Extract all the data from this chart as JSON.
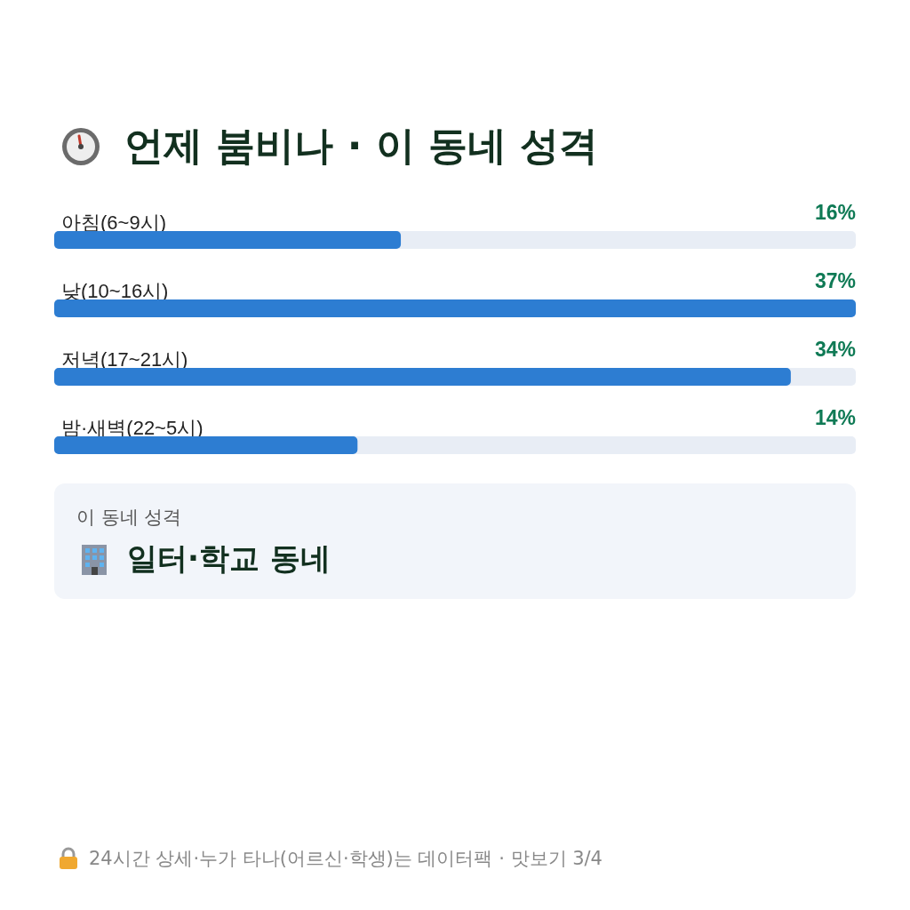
{
  "chart_data": {
    "type": "bar",
    "orientation": "horizontal",
    "title": "언제 붐비나 · 이 동네 성격",
    "categories": [
      "아침(6~9시)",
      "낮(10~16시)",
      "저녁(17~21시)",
      "밤·새벽(22~5시)"
    ],
    "values": [
      16,
      37,
      34,
      14
    ],
    "color": "#2d7dd2",
    "value_labels": [
      "16%",
      "37%",
      "34%",
      "14%"
    ],
    "annotations": [
      "이 동네 성격",
      "일터·학교 동네",
      "24시간 상세·누가 타나(어르신·학생)는 데이터팩 · 맛보기 3/4"
    ],
    "grid": false
  }
}
